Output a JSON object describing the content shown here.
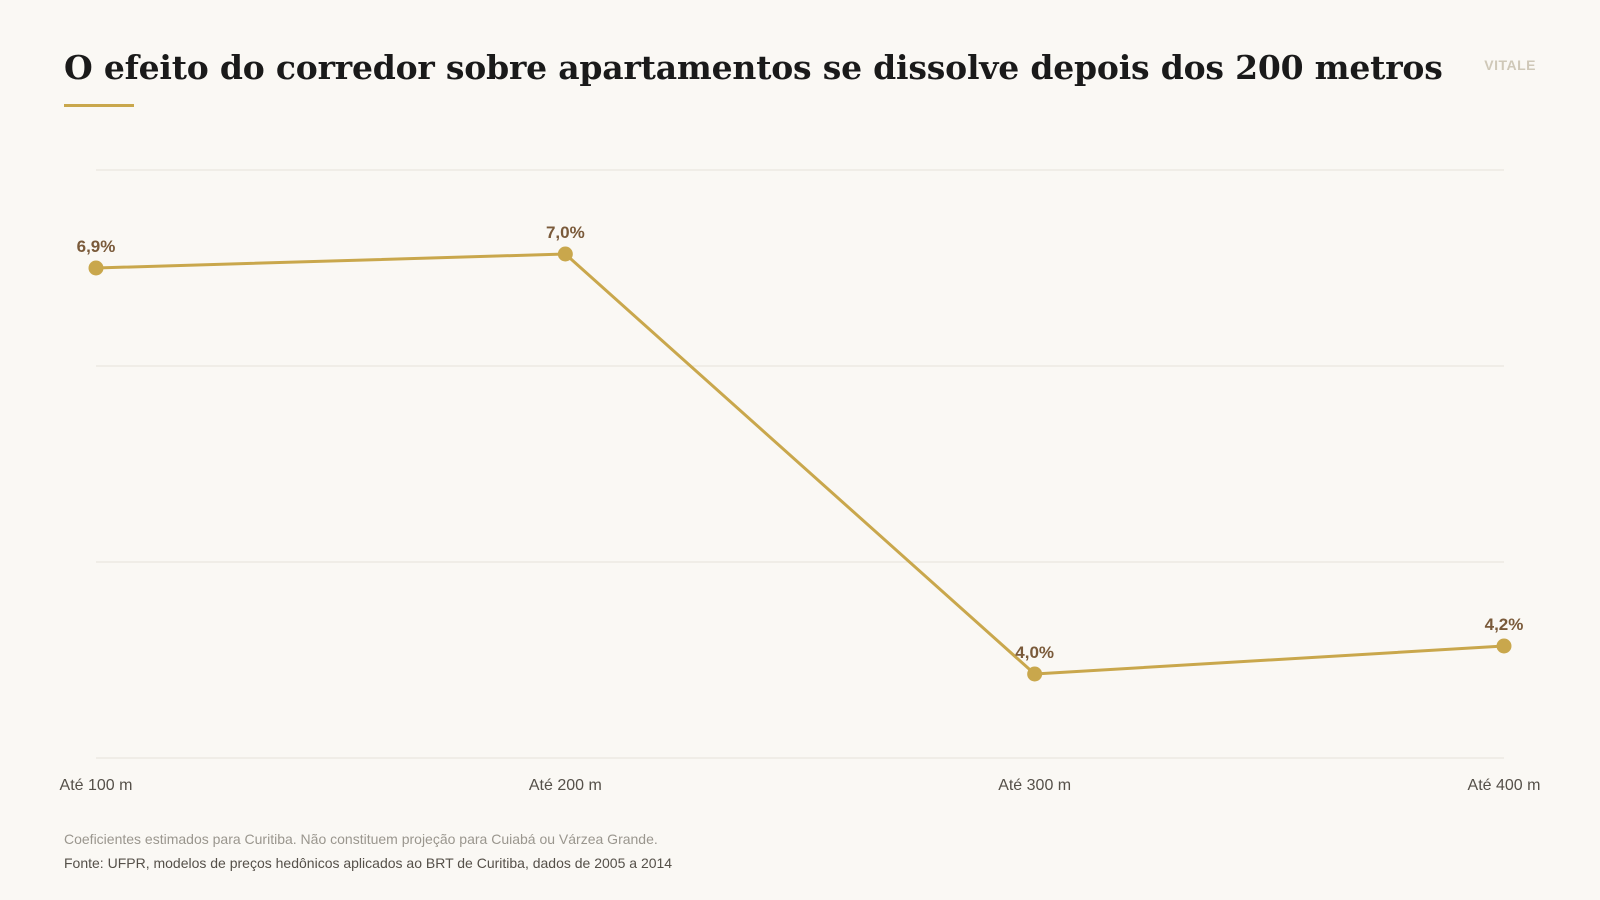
{
  "header": {
    "title": "O efeito do corredor sobre apartamentos se dissolve depois dos 200 metros",
    "brand": "VITALE"
  },
  "footer": {
    "note": "Coeficientes estimados para Curitiba. Não constituem projeção para Cuiabá ou Várzea Grande.",
    "source": "Fonte: UFPR, modelos de preços hedônicos aplicados ao BRT de Curitiba, dados de 2005 a 2014"
  },
  "colors": {
    "line": "#c9a74c",
    "label": "#7a5a3a",
    "grid": "#e6e2da",
    "tick": "#555049"
  },
  "chart_data": {
    "type": "line",
    "categories": [
      "Até 100 m",
      "Até 200 m",
      "Até 300 m",
      "Até 400 m"
    ],
    "series": [
      {
        "values": [
          6.9,
          7.0,
          4.0,
          4.2
        ],
        "labels": [
          "6,9%",
          "7,0%",
          "4,0%",
          "4,2%"
        ]
      }
    ],
    "ylim": [
      3.4,
      7.6
    ],
    "grid": true,
    "xlabel": "",
    "ylabel": ""
  }
}
